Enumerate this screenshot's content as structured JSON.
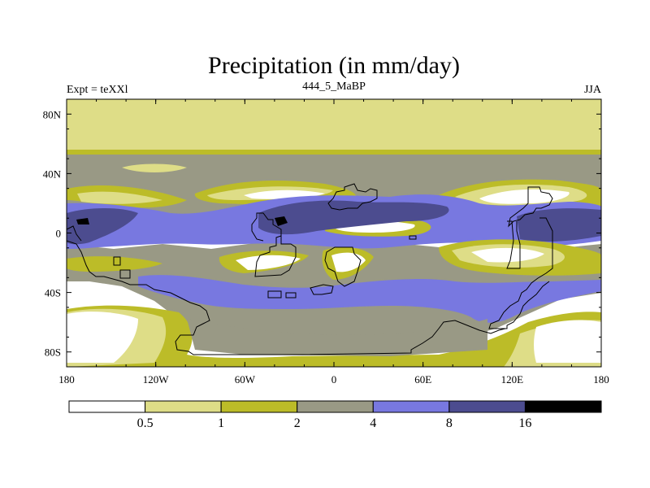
{
  "title": "Precipitation (in mm/day)",
  "subtitle_left": "Expt = teXXl",
  "subtitle_center": "444_5_MaBP",
  "subtitle_right": "JJA",
  "lat_ticks": [
    {
      "value": 80,
      "label": "80N"
    },
    {
      "value": 40,
      "label": "40N"
    },
    {
      "value": 0,
      "label": "0"
    },
    {
      "value": -40,
      "label": "40S"
    },
    {
      "value": -80,
      "label": "80S"
    }
  ],
  "lon_ticks": [
    {
      "value": -180,
      "label": "180"
    },
    {
      "value": -120,
      "label": "120W"
    },
    {
      "value": -60,
      "label": "60W"
    },
    {
      "value": 0,
      "label": "0"
    },
    {
      "value": 60,
      "label": "60E"
    },
    {
      "value": 120,
      "label": "120E"
    },
    {
      "value": 180,
      "label": "180"
    }
  ],
  "colorbar": {
    "colors": [
      "#ffffff",
      "#dedd87",
      "#bcbc28",
      "#999985",
      "#7878e0",
      "#4c4c8f",
      "#000000"
    ],
    "labels": [
      "0.5",
      "1",
      "2",
      "4",
      "8",
      "16"
    ]
  },
  "palette": {
    "white": "#ffffff",
    "light_yellow": "#dedd87",
    "olive": "#bcbc28",
    "gray": "#999985",
    "blue": "#7878e0",
    "dark_blue": "#4c4c8f",
    "black": "#000000"
  }
}
